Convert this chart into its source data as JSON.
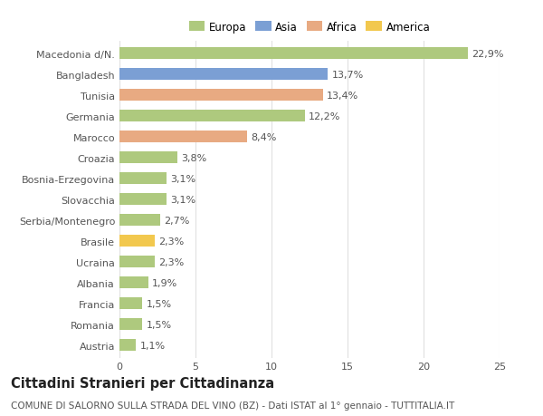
{
  "categories": [
    "Macedonia d/N.",
    "Bangladesh",
    "Tunisia",
    "Germania",
    "Marocco",
    "Croazia",
    "Bosnia-Erzegovina",
    "Slovacchia",
    "Serbia/Montenegro",
    "Brasile",
    "Ucraina",
    "Albania",
    "Francia",
    "Romania",
    "Austria"
  ],
  "values": [
    22.9,
    13.7,
    13.4,
    12.2,
    8.4,
    3.8,
    3.1,
    3.1,
    2.7,
    2.3,
    2.3,
    1.9,
    1.5,
    1.5,
    1.1
  ],
  "labels": [
    "22,9%",
    "13,7%",
    "13,4%",
    "12,2%",
    "8,4%",
    "3,8%",
    "3,1%",
    "3,1%",
    "2,7%",
    "2,3%",
    "2,3%",
    "1,9%",
    "1,5%",
    "1,5%",
    "1,1%"
  ],
  "colors": [
    "#aec97e",
    "#7b9fd4",
    "#e8aa82",
    "#aec97e",
    "#e8aa82",
    "#aec97e",
    "#aec97e",
    "#aec97e",
    "#aec97e",
    "#f2c84e",
    "#aec97e",
    "#aec97e",
    "#aec97e",
    "#aec97e",
    "#aec97e"
  ],
  "legend_labels": [
    "Europa",
    "Asia",
    "Africa",
    "America"
  ],
  "legend_colors": [
    "#aec97e",
    "#7b9fd4",
    "#e8aa82",
    "#f2c84e"
  ],
  "title": "Cittadini Stranieri per Cittadinanza",
  "subtitle": "COMUNE DI SALORNO SULLA STRADA DEL VINO (BZ) - Dati ISTAT al 1° gennaio - TUTTITALIA.IT",
  "xlim": [
    0,
    25
  ],
  "xticks": [
    0,
    5,
    10,
    15,
    20,
    25
  ],
  "background_color": "#ffffff",
  "bar_height": 0.55,
  "grid_color": "#e0e0e0",
  "label_fontsize": 8,
  "tick_fontsize": 8,
  "title_fontsize": 10.5,
  "subtitle_fontsize": 7.5
}
